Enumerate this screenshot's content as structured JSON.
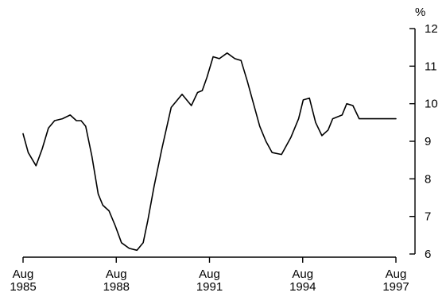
{
  "chart_data": {
    "type": "line",
    "title": "",
    "xlabel": "",
    "ylabel": "%",
    "ylim": [
      6,
      12
    ],
    "yticks": [
      6,
      7,
      8,
      9,
      10,
      11,
      12
    ],
    "xlim": [
      1985.583,
      1997.583
    ],
    "xticks": [
      {
        "x": 1985.583,
        "month": "Aug",
        "year": "1985"
      },
      {
        "x": 1988.583,
        "month": "Aug",
        "year": "1988"
      },
      {
        "x": 1991.583,
        "month": "Aug",
        "year": "1991"
      },
      {
        "x": 1994.583,
        "month": "Aug",
        "year": "1994"
      },
      {
        "x": 1997.583,
        "month": "Aug",
        "year": "1997"
      }
    ],
    "y_axis_position": "right",
    "grid": false,
    "line_color": "#000000",
    "series": [
      {
        "x": [
          1985.583,
          1985.75,
          1986.0,
          1986.2,
          1986.4,
          1986.6,
          1986.85,
          1987.1,
          1987.3,
          1987.45,
          1987.6,
          1987.8,
          1988.0,
          1988.15,
          1988.35,
          1988.55,
          1988.75,
          1989.0,
          1989.25,
          1989.45,
          1989.6,
          1989.8,
          1990.05,
          1990.35,
          1990.7,
          1991.0,
          1991.2,
          1991.35,
          1991.5,
          1991.7,
          1991.9,
          1992.15,
          1992.4,
          1992.6,
          1992.8,
          1993.0,
          1993.2,
          1993.4,
          1993.6,
          1993.9,
          1994.2,
          1994.45,
          1994.6,
          1994.8,
          1995.0,
          1995.2,
          1995.4,
          1995.55,
          1995.7,
          1995.85,
          1996.0,
          1996.2,
          1996.4,
          1996.55,
          1996.75,
          1996.95,
          1997.15,
          1997.3,
          1997.45,
          1997.583
        ],
        "y": [
          9.2,
          8.7,
          8.35,
          8.8,
          9.35,
          9.55,
          9.6,
          9.7,
          9.55,
          9.55,
          9.4,
          8.6,
          7.6,
          7.3,
          7.15,
          6.75,
          6.3,
          6.15,
          6.1,
          6.3,
          6.9,
          7.8,
          8.8,
          9.9,
          10.25,
          9.95,
          10.3,
          10.35,
          10.7,
          11.25,
          11.2,
          11.35,
          11.2,
          11.15,
          10.6,
          10.0,
          9.4,
          9.0,
          8.7,
          8.65,
          9.1,
          9.6,
          10.1,
          10.15,
          9.5,
          9.15,
          9.3,
          9.6,
          9.65,
          9.7,
          10.0,
          9.95,
          9.6,
          9.6,
          9.6,
          9.6,
          9.6,
          9.6,
          9.6,
          9.6
        ]
      }
    ]
  }
}
